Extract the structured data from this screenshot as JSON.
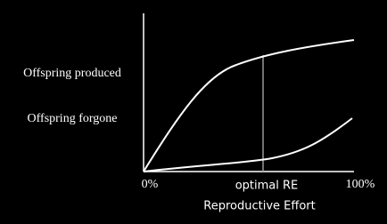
{
  "curves": [
    {
      "label": "Offspring produced"
    },
    {
      "label": "Offspring forgone"
    }
  ],
  "x_axis": {
    "start": "0%",
    "marker": "optimal RE",
    "end": "100%",
    "title": "Reproductive Effort"
  }
}
